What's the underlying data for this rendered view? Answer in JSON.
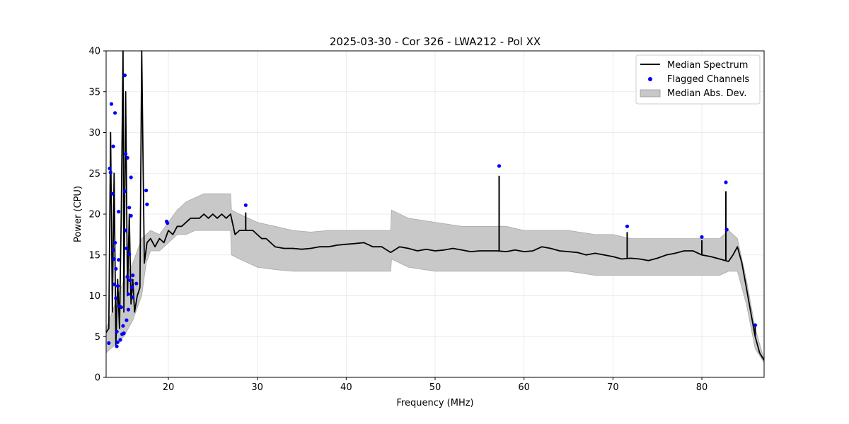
{
  "chart_data": {
    "type": "line",
    "title": "2025-03-30 - Cor 326 - LWA212 - Pol XX",
    "xlabel": "Frequency (MHz)",
    "ylabel": "Power (CPU)",
    "xlim": [
      13,
      87
    ],
    "ylim": [
      0,
      40
    ],
    "xticks": [
      20,
      30,
      40,
      50,
      60,
      70,
      80
    ],
    "yticks": [
      0,
      5,
      10,
      15,
      20,
      25,
      30,
      35,
      40
    ],
    "grid": true,
    "legend_position": "top-right",
    "legend": [
      {
        "label": "Median Spectrum",
        "kind": "line",
        "color": "#000000"
      },
      {
        "label": "Flagged Channels",
        "kind": "marker",
        "color": "#0000ff"
      },
      {
        "label": "Median Abs. Dev.",
        "kind": "band",
        "color": "#c8c8c8"
      }
    ],
    "median_spectrum": {
      "x": [
        13.0,
        13.3,
        13.5,
        13.7,
        13.9,
        14.1,
        14.3,
        14.5,
        14.7,
        14.9,
        15.0,
        15.2,
        15.4,
        15.6,
        15.8,
        16.0,
        16.2,
        16.5,
        16.8,
        17.0,
        17.3,
        17.6,
        18.0,
        18.5,
        19.0,
        19.5,
        20.0,
        20.5,
        21.0,
        21.5,
        22.0,
        22.5,
        23.0,
        23.5,
        24.0,
        24.5,
        25.0,
        25.5,
        26.0,
        26.5,
        27.0,
        27.5,
        28.0,
        28.5,
        29.0,
        29.5,
        30.0,
        30.5,
        31.0,
        31.5,
        32.0,
        33.0,
        34.0,
        35.0,
        36.0,
        37.0,
        38.0,
        39.0,
        40.0,
        41.0,
        42.0,
        43.0,
        44.0,
        45.0,
        46.0,
        47.0,
        48.0,
        49.0,
        50.0,
        51.0,
        52.0,
        53.0,
        54.0,
        55.0,
        56.0,
        57.0,
        58.0,
        59.0,
        60.0,
        61.0,
        62.0,
        63.0,
        64.0,
        65.0,
        66.0,
        67.0,
        68.0,
        69.0,
        70.0,
        71.0,
        72.0,
        73.0,
        74.0,
        75.0,
        76.0,
        77.0,
        78.0,
        79.0,
        80.0,
        81.0,
        82.0,
        83.0,
        83.5,
        84.0,
        84.5,
        85.0,
        85.5,
        86.0,
        86.5,
        87.0
      ],
      "y": [
        5.5,
        6.0,
        30.0,
        8.0,
        25.0,
        4.0,
        12.0,
        6.0,
        20.0,
        40.0,
        8.0,
        35.0,
        10.0,
        20.0,
        9.0,
        12.0,
        8.0,
        10.0,
        11.0,
        40.0,
        14.0,
        16.5,
        17.0,
        16.0,
        17.0,
        16.5,
        18.0,
        17.5,
        18.5,
        18.5,
        19.0,
        19.5,
        19.5,
        19.5,
        20.0,
        19.5,
        20.0,
        19.5,
        20.0,
        19.5,
        20.0,
        17.5,
        18.0,
        18.0,
        18.0,
        18.0,
        17.5,
        17.0,
        17.0,
        16.5,
        16.0,
        15.8,
        15.8,
        15.7,
        15.8,
        16.0,
        16.0,
        16.2,
        16.3,
        16.4,
        16.5,
        16.0,
        16.0,
        15.3,
        16.0,
        15.8,
        15.5,
        15.7,
        15.5,
        15.6,
        15.8,
        15.6,
        15.4,
        15.5,
        15.5,
        15.5,
        15.4,
        15.6,
        15.4,
        15.5,
        16.0,
        15.8,
        15.5,
        15.4,
        15.3,
        15.0,
        15.2,
        15.0,
        14.8,
        14.5,
        14.6,
        14.5,
        14.3,
        14.6,
        15.0,
        15.2,
        15.5,
        15.5,
        15.0,
        14.8,
        14.5,
        14.2,
        15.0,
        16.0,
        14.0,
        11.0,
        8.0,
        5.0,
        3.0,
        2.1
      ]
    },
    "spectrum_spikes": [
      {
        "x": 57.2,
        "y": 24.7
      },
      {
        "x": 71.6,
        "y": 17.8
      },
      {
        "x": 82.7,
        "y": 22.8
      },
      {
        "x": 80.0,
        "y": 16.8
      },
      {
        "x": 28.7,
        "y": 20.2
      },
      {
        "x": 86.0,
        "y": 6.2
      }
    ],
    "mad_band": {
      "x": [
        13.0,
        14.0,
        15.0,
        16.0,
        17.0,
        17.5,
        18.0,
        19.0,
        20.0,
        21.0,
        22.0,
        23.0,
        24.0,
        25.0,
        26.0,
        27.0,
        27.1,
        28.0,
        29.0,
        30.0,
        32.0,
        34.0,
        36.0,
        38.0,
        40.0,
        42.0,
        44.0,
        45.0,
        45.1,
        47.0,
        50.0,
        53.0,
        56.0,
        58.0,
        60.0,
        62.0,
        65.0,
        68.0,
        70.0,
        72.0,
        74.0,
        76.0,
        78.0,
        80.0,
        82.0,
        83.0,
        84.0,
        85.0,
        86.0,
        87.0
      ],
      "upper": [
        6.0,
        9.0,
        12.0,
        14.0,
        17.0,
        17.5,
        18.0,
        17.5,
        19.0,
        20.5,
        21.5,
        22.0,
        22.5,
        22.5,
        22.5,
        22.5,
        20.5,
        20.0,
        19.5,
        19.0,
        18.5,
        18.0,
        17.8,
        18.0,
        18.0,
        18.0,
        18.0,
        18.0,
        20.5,
        19.5,
        19.0,
        18.5,
        18.5,
        18.5,
        18.0,
        18.0,
        18.0,
        17.5,
        17.5,
        17.0,
        17.0,
        17.0,
        17.0,
        17.0,
        17.0,
        18.0,
        17.0,
        12.0,
        6.0,
        2.2
      ],
      "lower": [
        3.0,
        4.0,
        5.0,
        7.0,
        10.0,
        14.0,
        15.5,
        15.5,
        16.5,
        17.5,
        17.5,
        18.0,
        18.0,
        18.0,
        18.0,
        18.0,
        15.0,
        14.5,
        14.0,
        13.5,
        13.2,
        13.0,
        13.0,
        13.0,
        13.0,
        13.0,
        13.0,
        13.0,
        14.5,
        13.5,
        13.0,
        13.0,
        13.0,
        13.0,
        13.0,
        13.0,
        13.0,
        12.5,
        12.5,
        12.5,
        12.5,
        12.5,
        12.5,
        12.5,
        12.5,
        13.0,
        13.0,
        9.0,
        3.5,
        1.8
      ]
    },
    "flagged_channels": [
      {
        "x": 13.3,
        "y": 4.2
      },
      {
        "x": 13.4,
        "y": 25.6
      },
      {
        "x": 13.5,
        "y": 25.1
      },
      {
        "x": 13.6,
        "y": 33.5
      },
      {
        "x": 13.7,
        "y": 22.5
      },
      {
        "x": 13.8,
        "y": 28.3
      },
      {
        "x": 13.8,
        "y": 15.6
      },
      {
        "x": 13.9,
        "y": 14.5
      },
      {
        "x": 13.9,
        "y": 11.4
      },
      {
        "x": 14.0,
        "y": 16.5
      },
      {
        "x": 14.0,
        "y": 32.4
      },
      {
        "x": 14.1,
        "y": 13.3
      },
      {
        "x": 14.1,
        "y": 9.7
      },
      {
        "x": 14.2,
        "y": 5.6
      },
      {
        "x": 14.2,
        "y": 3.8
      },
      {
        "x": 14.3,
        "y": 11.2
      },
      {
        "x": 14.3,
        "y": 4.3
      },
      {
        "x": 14.4,
        "y": 20.3
      },
      {
        "x": 14.4,
        "y": 14.4
      },
      {
        "x": 14.5,
        "y": 8.7
      },
      {
        "x": 14.6,
        "y": 4.6
      },
      {
        "x": 14.7,
        "y": 8.6
      },
      {
        "x": 14.8,
        "y": 5.3
      },
      {
        "x": 14.9,
        "y": 6.3
      },
      {
        "x": 15.0,
        "y": 5.4
      },
      {
        "x": 15.1,
        "y": 22.8
      },
      {
        "x": 15.1,
        "y": 37.0
      },
      {
        "x": 15.2,
        "y": 27.4
      },
      {
        "x": 15.2,
        "y": 18.0
      },
      {
        "x": 15.3,
        "y": 15.8
      },
      {
        "x": 15.3,
        "y": 7.0
      },
      {
        "x": 15.4,
        "y": 26.9
      },
      {
        "x": 15.4,
        "y": 12.3
      },
      {
        "x": 15.5,
        "y": 10.2
      },
      {
        "x": 15.5,
        "y": 8.3
      },
      {
        "x": 15.6,
        "y": 15.1
      },
      {
        "x": 15.6,
        "y": 20.8
      },
      {
        "x": 15.7,
        "y": 11.9
      },
      {
        "x": 15.8,
        "y": 24.5
      },
      {
        "x": 15.8,
        "y": 19.8
      },
      {
        "x": 15.9,
        "y": 11.0
      },
      {
        "x": 16.0,
        "y": 12.5
      },
      {
        "x": 16.0,
        "y": 9.8
      },
      {
        "x": 16.4,
        "y": 11.5
      },
      {
        "x": 17.5,
        "y": 22.9
      },
      {
        "x": 17.6,
        "y": 21.2
      },
      {
        "x": 19.8,
        "y": 19.1
      },
      {
        "x": 19.9,
        "y": 18.9
      },
      {
        "x": 28.7,
        "y": 21.1
      },
      {
        "x": 57.2,
        "y": 25.9
      },
      {
        "x": 71.6,
        "y": 18.5
      },
      {
        "x": 80.0,
        "y": 17.2
      },
      {
        "x": 82.7,
        "y": 23.9
      },
      {
        "x": 82.8,
        "y": 18.1
      },
      {
        "x": 86.0,
        "y": 6.4
      }
    ]
  }
}
